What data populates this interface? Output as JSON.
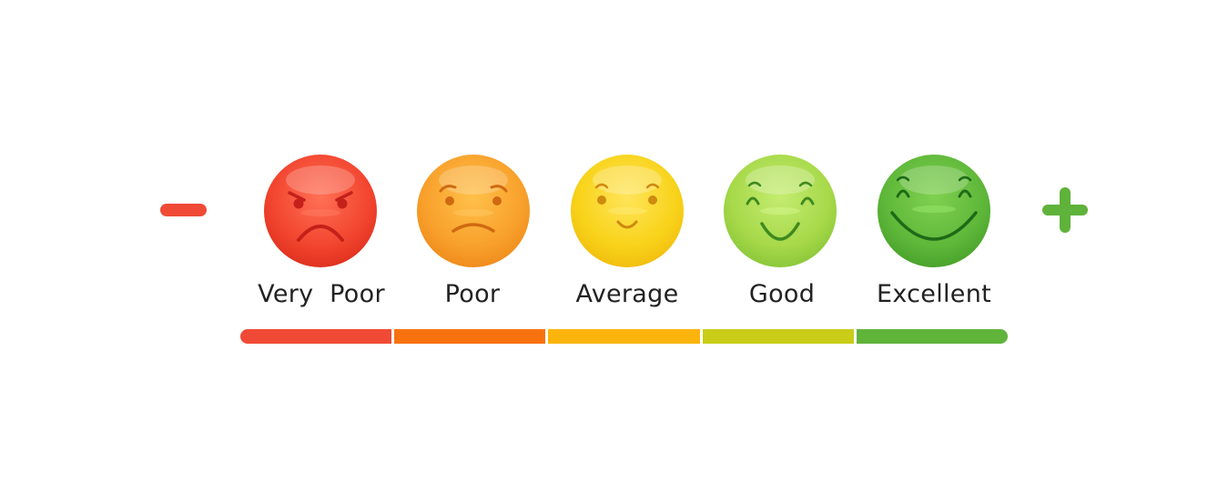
{
  "controls": {
    "decrease_icon": "minus-icon",
    "increase_icon": "plus-icon",
    "decrease_color": "#f04a36",
    "increase_color": "#5fb23a"
  },
  "ratings": [
    {
      "label": "Very  Poor",
      "icon": "angry-face-icon",
      "color": "#f2452f",
      "dark": "#c4211a",
      "bar_color": "#f04a36"
    },
    {
      "label": "Poor",
      "icon": "sad-face-icon",
      "color": "#f8a12c",
      "dark": "#d06a12",
      "bar_color": "#f7720f"
    },
    {
      "label": "Average",
      "icon": "slight-smile-face-icon",
      "color": "#f8d31a",
      "dark": "#cf8a10",
      "bar_color": "#fbb40c"
    },
    {
      "label": "Good",
      "icon": "happy-face-icon",
      "color": "#a7d94a",
      "dark": "#3f8a1e",
      "bar_color": "#c9cd18"
    },
    {
      "label": "Excellent",
      "icon": "grin-face-icon",
      "color": "#5fb83a",
      "dark": "#1f6a17",
      "bar_color": "#60b43a"
    }
  ]
}
